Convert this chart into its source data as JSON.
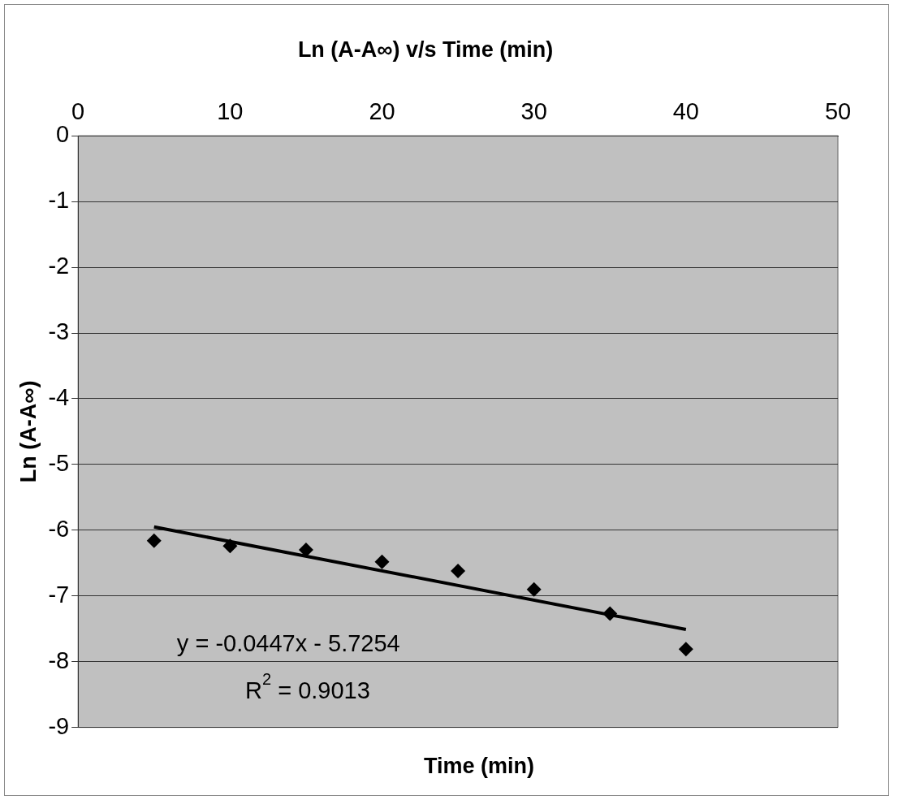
{
  "chart_data": {
    "type": "scatter",
    "title": "Ln (A-A∞) v/s Time (min)",
    "xlabel": "Time (min)",
    "ylabel": "Ln (A-A∞)",
    "series": [
      {
        "color": "#000000",
        "x": [
          5,
          10,
          15,
          20,
          25,
          30,
          35,
          40
        ],
        "values": [
          -6.16,
          -6.24,
          -6.3,
          -6.48,
          -6.62,
          -6.9,
          -7.27,
          -7.81
        ]
      },
      {
        "type": "line",
        "color": "#000000",
        "marker": "none",
        "x": [
          5,
          40
        ],
        "values": [
          -5.95,
          -7.51
        ]
      }
    ],
    "marker": "diamond",
    "xlim": [
      0,
      50
    ],
    "xticks": [
      0,
      10,
      20,
      30,
      40,
      50
    ],
    "ylim": [
      -9,
      0
    ],
    "yticks": [
      -9,
      -8,
      -7,
      -6,
      -5,
      -4,
      -3,
      -2,
      -1,
      0
    ],
    "grid": "y",
    "legend": false,
    "annotations": [
      "y = -0.0447x - 5.7254",
      "R$^{2}$ = 0.9013"
    ]
  }
}
